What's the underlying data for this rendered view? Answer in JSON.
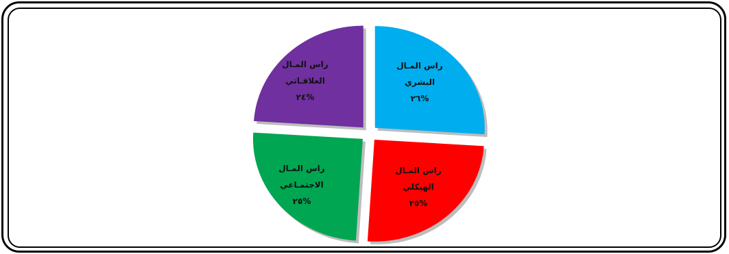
{
  "chart_data": {
    "type": "pie",
    "title": "",
    "slices": [
      {
        "label_lines": [
          "راس المـال",
          "البشري",
          "%٢٦"
        ],
        "value": 26,
        "color": "#00aeef"
      },
      {
        "label_lines": [
          "راس المـال",
          "الهيكلي",
          "%٢٥"
        ],
        "value": 25,
        "color": "#ff0000"
      },
      {
        "label_lines": [
          "راس المـال",
          "الاجتمـاعي",
          "%٢٥"
        ],
        "value": 25,
        "color": "#00a651"
      },
      {
        "label_lines": [
          "راس المـال",
          "العلاقـاتي",
          "%٢٤"
        ],
        "value": 24,
        "color": "#7030a0"
      }
    ],
    "legend": "none",
    "exploded": true
  }
}
